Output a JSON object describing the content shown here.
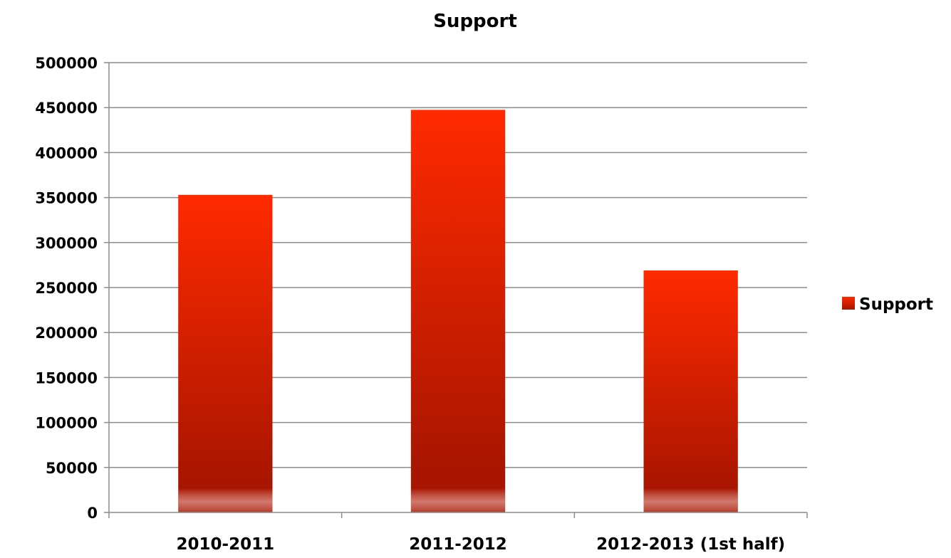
{
  "chart_data": {
    "type": "bar",
    "title": "Support",
    "categories": [
      "2010-2011",
      "2011-2012",
      "2012-2013 (1st half)"
    ],
    "series": [
      {
        "name": "Support",
        "values": [
          353000,
          447500,
          269000
        ]
      }
    ],
    "ylim": [
      0,
      500000
    ],
    "yticks": [
      "0",
      "50000",
      "100000",
      "150000",
      "200000",
      "250000",
      "300000",
      "350000",
      "400000",
      "450000",
      "500000"
    ],
    "grid": true,
    "legend_position": "right",
    "colors": {
      "bar_top": "#ff2a00",
      "bar_bottom": "#a81500",
      "bar_base_glow": "#e8a8a0"
    }
  }
}
